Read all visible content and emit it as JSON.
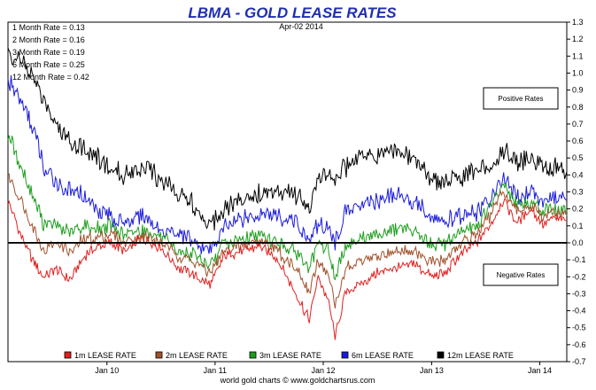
{
  "chart_data": {
    "type": "line",
    "title": "LBMA - GOLD LEASE RATES",
    "date_label": "Apr-02  2014",
    "credit": "world gold charts © www.goldchartsrus.com",
    "ylim": [
      -0.7,
      1.3
    ],
    "y_ticks": [
      "1.3",
      "1.2",
      "1.1",
      "1.0",
      "0.9",
      "0.8",
      "0.7",
      "0.6",
      "0.5",
      "0.4",
      "0.3",
      "0.2",
      "0.1",
      "0.0",
      "-0.1",
      "-0.2",
      "-0.3",
      "-0.4",
      "-0.5",
      "-0.6",
      "-0.7"
    ],
    "x_ticks": [
      "Jan 10",
      "Jan 11",
      "Jan 12",
      "Jan 13",
      "Jan 14"
    ],
    "grid": false,
    "legend_position": "bottom",
    "zero_line": true,
    "current_rates": [
      "1 Month Rate = 0.13",
      "2 Month Rate = 0.16",
      "3 Month Rate = 0.19",
      "6 Month Rate = 0.25",
      "12 Month Rate = 0.42"
    ],
    "annotations": {
      "positive": "Positive Rates",
      "negative": "Negative Rates"
    },
    "x_range": [
      "2009-02-01",
      "2014-04-02"
    ],
    "series": [
      {
        "name": "1m LEASE RATE",
        "color": "#e02020",
        "points": [
          [
            "2009-02-01",
            0.25
          ],
          [
            "2009-03-15",
            0.05
          ],
          [
            "2009-05-01",
            -0.12
          ],
          [
            "2009-06-01",
            -0.2
          ],
          [
            "2009-07-15",
            -0.15
          ],
          [
            "2009-09-01",
            -0.22
          ],
          [
            "2009-10-15",
            -0.08
          ],
          [
            "2009-12-01",
            -0.02
          ],
          [
            "2010-01-15",
            0.0
          ],
          [
            "2010-03-01",
            -0.05
          ],
          [
            "2010-05-01",
            0.03
          ],
          [
            "2010-07-01",
            -0.03
          ],
          [
            "2010-09-01",
            -0.15
          ],
          [
            "2010-11-01",
            -0.2
          ],
          [
            "2010-12-15",
            -0.25
          ],
          [
            "2011-02-01",
            -0.08
          ],
          [
            "2011-04-01",
            -0.05
          ],
          [
            "2011-06-01",
            -0.02
          ],
          [
            "2011-08-01",
            -0.1
          ],
          [
            "2011-10-01",
            -0.3
          ],
          [
            "2011-11-15",
            -0.45
          ],
          [
            "2011-12-15",
            -0.2
          ],
          [
            "2012-01-20",
            -0.35
          ],
          [
            "2012-02-10",
            -0.55
          ],
          [
            "2012-03-15",
            -0.3
          ],
          [
            "2012-05-01",
            -0.25
          ],
          [
            "2012-07-01",
            -0.18
          ],
          [
            "2012-09-01",
            -0.15
          ],
          [
            "2012-11-01",
            -0.12
          ],
          [
            "2013-01-01",
            -0.2
          ],
          [
            "2013-02-15",
            -0.18
          ],
          [
            "2013-04-01",
            -0.08
          ],
          [
            "2013-06-01",
            0.0
          ],
          [
            "2013-07-15",
            0.1
          ],
          [
            "2013-09-01",
            0.25
          ],
          [
            "2013-10-15",
            0.12
          ],
          [
            "2013-12-01",
            0.2
          ],
          [
            "2014-01-15",
            0.1
          ],
          [
            "2014-02-15",
            0.15
          ],
          [
            "2014-04-02",
            0.13
          ]
        ]
      },
      {
        "name": "2m LEASE RATE",
        "color": "#a0522d",
        "points": [
          [
            "2009-02-01",
            0.4
          ],
          [
            "2009-03-15",
            0.25
          ],
          [
            "2009-05-01",
            0.08
          ],
          [
            "2009-06-01",
            -0.05
          ],
          [
            "2009-07-15",
            0.0
          ],
          [
            "2009-09-01",
            -0.05
          ],
          [
            "2009-10-15",
            0.02
          ],
          [
            "2009-12-01",
            0.03
          ],
          [
            "2010-01-15",
            0.05
          ],
          [
            "2010-03-01",
            0.0
          ],
          [
            "2010-05-01",
            0.04
          ],
          [
            "2010-07-01",
            0.0
          ],
          [
            "2010-09-01",
            -0.08
          ],
          [
            "2010-11-01",
            -0.12
          ],
          [
            "2010-12-15",
            -0.18
          ],
          [
            "2011-02-01",
            -0.05
          ],
          [
            "2011-04-01",
            -0.02
          ],
          [
            "2011-06-01",
            0.02
          ],
          [
            "2011-08-01",
            -0.05
          ],
          [
            "2011-10-01",
            -0.15
          ],
          [
            "2011-11-15",
            -0.3
          ],
          [
            "2011-12-15",
            -0.1
          ],
          [
            "2012-01-20",
            -0.2
          ],
          [
            "2012-02-10",
            -0.38
          ],
          [
            "2012-03-15",
            -0.15
          ],
          [
            "2012-05-01",
            -0.12
          ],
          [
            "2012-07-01",
            -0.08
          ],
          [
            "2012-09-01",
            -0.05
          ],
          [
            "2012-11-01",
            -0.05
          ],
          [
            "2013-01-01",
            -0.12
          ],
          [
            "2013-02-15",
            -0.1
          ],
          [
            "2013-04-01",
            -0.02
          ],
          [
            "2013-06-01",
            0.05
          ],
          [
            "2013-07-15",
            0.15
          ],
          [
            "2013-09-01",
            0.3
          ],
          [
            "2013-10-15",
            0.18
          ],
          [
            "2013-12-01",
            0.22
          ],
          [
            "2014-01-15",
            0.14
          ],
          [
            "2014-02-15",
            0.18
          ],
          [
            "2014-04-02",
            0.16
          ]
        ]
      },
      {
        "name": "3m LEASE RATE",
        "color": "#1e9e1e",
        "points": [
          [
            "2009-02-01",
            0.65
          ],
          [
            "2009-03-15",
            0.45
          ],
          [
            "2009-05-01",
            0.25
          ],
          [
            "2009-06-01",
            0.12
          ],
          [
            "2009-07-15",
            0.1
          ],
          [
            "2009-09-01",
            0.05
          ],
          [
            "2009-10-15",
            0.1
          ],
          [
            "2009-12-01",
            0.08
          ],
          [
            "2010-01-15",
            0.1
          ],
          [
            "2010-03-01",
            0.05
          ],
          [
            "2010-05-01",
            0.08
          ],
          [
            "2010-07-01",
            0.03
          ],
          [
            "2010-09-01",
            -0.05
          ],
          [
            "2010-11-01",
            -0.08
          ],
          [
            "2010-12-15",
            -0.15
          ],
          [
            "2011-02-01",
            0.0
          ],
          [
            "2011-04-01",
            0.02
          ],
          [
            "2011-06-01",
            0.05
          ],
          [
            "2011-08-01",
            0.0
          ],
          [
            "2011-10-01",
            -0.05
          ],
          [
            "2011-11-15",
            -0.15
          ],
          [
            "2011-12-15",
            0.0
          ],
          [
            "2012-01-20",
            -0.05
          ],
          [
            "2012-02-10",
            -0.2
          ],
          [
            "2012-03-15",
            -0.02
          ],
          [
            "2012-05-01",
            0.02
          ],
          [
            "2012-07-01",
            0.05
          ],
          [
            "2012-09-01",
            0.08
          ],
          [
            "2012-11-01",
            0.08
          ],
          [
            "2013-01-01",
            -0.02
          ],
          [
            "2013-02-15",
            0.0
          ],
          [
            "2013-04-01",
            0.05
          ],
          [
            "2013-06-01",
            0.1
          ],
          [
            "2013-07-15",
            0.2
          ],
          [
            "2013-09-01",
            0.35
          ],
          [
            "2013-10-15",
            0.22
          ],
          [
            "2013-12-01",
            0.25
          ],
          [
            "2014-01-15",
            0.18
          ],
          [
            "2014-02-15",
            0.2
          ],
          [
            "2014-04-02",
            0.19
          ]
        ]
      },
      {
        "name": "6m LEASE RATE",
        "color": "#1a1adc",
        "points": [
          [
            "2009-02-01",
            0.95
          ],
          [
            "2009-03-15",
            0.85
          ],
          [
            "2009-05-01",
            0.65
          ],
          [
            "2009-06-01",
            0.45
          ],
          [
            "2009-07-15",
            0.35
          ],
          [
            "2009-09-01",
            0.3
          ],
          [
            "2009-10-15",
            0.28
          ],
          [
            "2009-12-01",
            0.2
          ],
          [
            "2010-01-15",
            0.15
          ],
          [
            "2010-03-01",
            0.12
          ],
          [
            "2010-05-01",
            0.15
          ],
          [
            "2010-07-01",
            0.08
          ],
          [
            "2010-09-01",
            0.05
          ],
          [
            "2010-11-01",
            0.0
          ],
          [
            "2010-12-15",
            -0.05
          ],
          [
            "2011-02-01",
            0.1
          ],
          [
            "2011-04-01",
            0.15
          ],
          [
            "2011-06-01",
            0.18
          ],
          [
            "2011-08-01",
            0.15
          ],
          [
            "2011-10-01",
            0.12
          ],
          [
            "2011-11-15",
            0.0
          ],
          [
            "2011-12-15",
            0.12
          ],
          [
            "2012-01-20",
            0.1
          ],
          [
            "2012-02-10",
            0.0
          ],
          [
            "2012-03-15",
            0.18
          ],
          [
            "2012-05-01",
            0.22
          ],
          [
            "2012-07-01",
            0.25
          ],
          [
            "2012-09-01",
            0.28
          ],
          [
            "2012-11-01",
            0.25
          ],
          [
            "2013-01-01",
            0.15
          ],
          [
            "2013-02-15",
            0.12
          ],
          [
            "2013-04-01",
            0.15
          ],
          [
            "2013-06-01",
            0.18
          ],
          [
            "2013-07-15",
            0.25
          ],
          [
            "2013-09-01",
            0.38
          ],
          [
            "2013-10-15",
            0.28
          ],
          [
            "2013-12-01",
            0.3
          ],
          [
            "2014-01-15",
            0.25
          ],
          [
            "2014-02-15",
            0.28
          ],
          [
            "2014-04-02",
            0.25
          ]
        ]
      },
      {
        "name": "12m LEASE RATE",
        "color": "#000000",
        "points": [
          [
            "2009-02-01",
            1.12
          ],
          [
            "2009-03-15",
            1.08
          ],
          [
            "2009-05-01",
            0.95
          ],
          [
            "2009-06-01",
            0.85
          ],
          [
            "2009-07-15",
            0.7
          ],
          [
            "2009-09-01",
            0.6
          ],
          [
            "2009-10-15",
            0.55
          ],
          [
            "2009-12-01",
            0.5
          ],
          [
            "2010-01-15",
            0.42
          ],
          [
            "2010-03-01",
            0.4
          ],
          [
            "2010-05-01",
            0.45
          ],
          [
            "2010-07-01",
            0.38
          ],
          [
            "2010-09-01",
            0.3
          ],
          [
            "2010-11-01",
            0.2
          ],
          [
            "2010-12-15",
            0.1
          ],
          [
            "2011-02-01",
            0.22
          ],
          [
            "2011-04-01",
            0.25
          ],
          [
            "2011-06-01",
            0.3
          ],
          [
            "2011-08-01",
            0.32
          ],
          [
            "2011-10-01",
            0.28
          ],
          [
            "2011-11-15",
            0.2
          ],
          [
            "2011-12-15",
            0.35
          ],
          [
            "2012-01-20",
            0.42
          ],
          [
            "2012-02-10",
            0.38
          ],
          [
            "2012-03-15",
            0.45
          ],
          [
            "2012-05-01",
            0.5
          ],
          [
            "2012-07-01",
            0.52
          ],
          [
            "2012-09-01",
            0.55
          ],
          [
            "2012-11-01",
            0.48
          ],
          [
            "2013-01-01",
            0.38
          ],
          [
            "2013-02-15",
            0.35
          ],
          [
            "2013-04-01",
            0.38
          ],
          [
            "2013-06-01",
            0.42
          ],
          [
            "2013-07-15",
            0.45
          ],
          [
            "2013-09-01",
            0.55
          ],
          [
            "2013-10-15",
            0.48
          ],
          [
            "2013-12-01",
            0.5
          ],
          [
            "2014-01-15",
            0.44
          ],
          [
            "2014-02-15",
            0.45
          ],
          [
            "2014-04-02",
            0.42
          ]
        ]
      }
    ]
  }
}
